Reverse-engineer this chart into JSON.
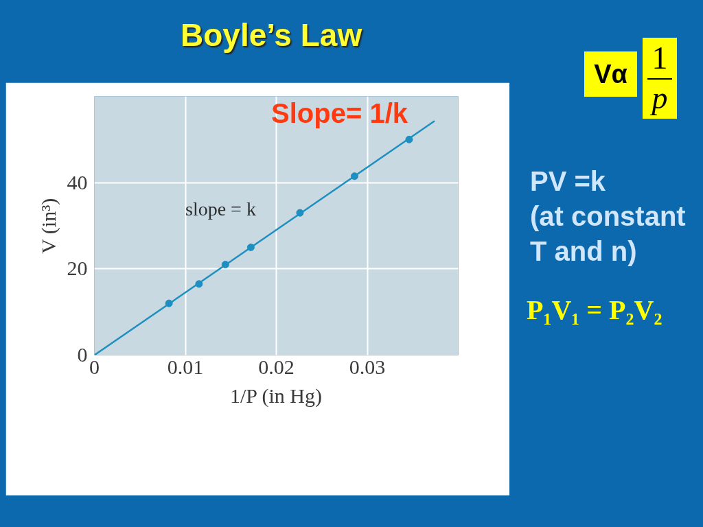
{
  "chart_data": {
    "type": "scatter",
    "title": "Boyle’s Law",
    "xlabel": "1/P (in Hg)",
    "ylabel": "V (in³)",
    "x": [
      0.0082,
      0.0115,
      0.0144,
      0.0172,
      0.0226,
      0.0286,
      0.0346
    ],
    "series": [
      {
        "color": "#1e8fc0",
        "values": [
          12,
          16.5,
          21,
          25,
          33,
          41.5,
          50
        ],
        "marker": "circle"
      },
      {
        "type": "line",
        "color": "#1e8fc0",
        "x": [
          0,
          0.0374
        ],
        "values": [
          0,
          54.3
        ],
        "marker": "none"
      }
    ],
    "xlim": [
      0,
      0.04
    ],
    "ylim": [
      0,
      60
    ],
    "xticks": [
      0,
      0.01,
      0.02,
      0.03
    ],
    "yticks": [
      0,
      20,
      40
    ],
    "grid": true,
    "annotations": [
      "Slope= 1/k",
      "slope = k",
      "Vα",
      "1",
      "p",
      "PV =k\n(at constant\nT and n)",
      "P₁V₁ = P₂V₂"
    ]
  }
}
